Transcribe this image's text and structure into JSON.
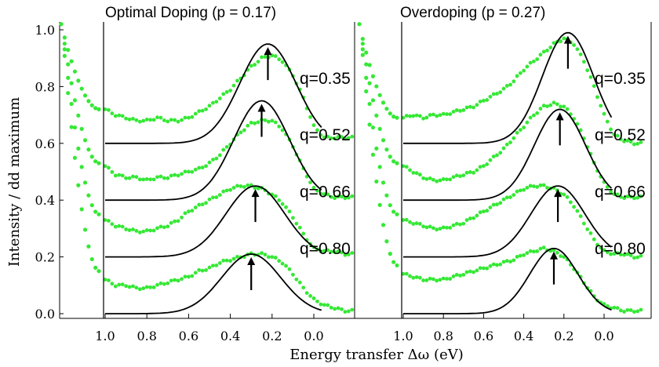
{
  "chart_data": {
    "type": "line",
    "xlabel": "Energy transfer Δω (eV)",
    "ylabel": "Intensity / dd maximum",
    "ylim": [
      0.0,
      1.0
    ],
    "y_ticks": [
      "0.0",
      "0.2",
      "0.4",
      "0.6",
      "0.8",
      "1.0"
    ],
    "x_ticks": [
      "1.0",
      "0.8",
      "0.6",
      "0.4",
      "0.2",
      "0.0"
    ],
    "xlim": [
      1.0,
      -0.2
    ],
    "series_style": {
      "measured_color": "#35e835",
      "fit_color": "#000000",
      "arrow_color": "#000000"
    },
    "panels": [
      {
        "title": "Optimal Doping (p = 0.17)",
        "curves": [
          {
            "q_label": "q=0.35",
            "baseline": 0.6,
            "fit_peak_x": 0.22,
            "fit_peak_y": 0.95,
            "fit_width": 0.19,
            "data_points": [
              [
                1.0,
                0.72
              ],
              [
                0.95,
                0.7
              ],
              [
                0.9,
                0.69
              ],
              [
                0.85,
                0.68
              ],
              [
                0.8,
                0.68
              ],
              [
                0.75,
                0.69
              ],
              [
                0.7,
                0.68
              ],
              [
                0.65,
                0.68
              ],
              [
                0.6,
                0.69
              ],
              [
                0.55,
                0.71
              ],
              [
                0.5,
                0.73
              ],
              [
                0.45,
                0.76
              ],
              [
                0.4,
                0.79
              ],
              [
                0.35,
                0.83
              ],
              [
                0.3,
                0.87
              ],
              [
                0.25,
                0.9
              ],
              [
                0.2,
                0.91
              ],
              [
                0.15,
                0.89
              ],
              [
                0.1,
                0.84
              ],
              [
                0.05,
                0.76
              ],
              [
                0.0,
                0.66
              ],
              [
                -0.05,
                0.62
              ],
              [
                -0.1,
                0.62
              ],
              [
                -0.15,
                0.62
              ],
              [
                -0.2,
                0.62
              ]
            ]
          },
          {
            "q_label": "q=0.52",
            "baseline": 0.4,
            "fit_peak_x": 0.25,
            "fit_peak_y": 0.75,
            "fit_width": 0.19,
            "data_points": [
              [
                1.0,
                0.52
              ],
              [
                0.95,
                0.49
              ],
              [
                0.9,
                0.48
              ],
              [
                0.85,
                0.48
              ],
              [
                0.8,
                0.47
              ],
              [
                0.75,
                0.48
              ],
              [
                0.7,
                0.48
              ],
              [
                0.65,
                0.49
              ],
              [
                0.6,
                0.5
              ],
              [
                0.55,
                0.51
              ],
              [
                0.5,
                0.53
              ],
              [
                0.45,
                0.56
              ],
              [
                0.4,
                0.6
              ],
              [
                0.35,
                0.64
              ],
              [
                0.3,
                0.67
              ],
              [
                0.25,
                0.68
              ],
              [
                0.2,
                0.68
              ],
              [
                0.15,
                0.65
              ],
              [
                0.1,
                0.59
              ],
              [
                0.05,
                0.51
              ],
              [
                0.0,
                0.44
              ],
              [
                -0.05,
                0.42
              ],
              [
                -0.1,
                0.41
              ],
              [
                -0.15,
                0.41
              ],
              [
                -0.2,
                0.41
              ]
            ]
          },
          {
            "q_label": "q=0.66",
            "baseline": 0.2,
            "fit_peak_x": 0.28,
            "fit_peak_y": 0.45,
            "fit_width": 0.2,
            "data_points": [
              [
                1.0,
                0.33
              ],
              [
                0.95,
                0.31
              ],
              [
                0.9,
                0.3
              ],
              [
                0.85,
                0.29
              ],
              [
                0.8,
                0.29
              ],
              [
                0.75,
                0.3
              ],
              [
                0.7,
                0.31
              ],
              [
                0.65,
                0.33
              ],
              [
                0.6,
                0.36
              ],
              [
                0.55,
                0.38
              ],
              [
                0.5,
                0.4
              ],
              [
                0.45,
                0.42
              ],
              [
                0.4,
                0.44
              ],
              [
                0.35,
                0.45
              ],
              [
                0.3,
                0.45
              ],
              [
                0.25,
                0.44
              ],
              [
                0.2,
                0.42
              ],
              [
                0.15,
                0.39
              ],
              [
                0.1,
                0.34
              ],
              [
                0.05,
                0.28
              ],
              [
                0.0,
                0.23
              ],
              [
                -0.05,
                0.22
              ],
              [
                -0.1,
                0.22
              ],
              [
                -0.15,
                0.21
              ],
              [
                -0.2,
                0.21
              ]
            ]
          },
          {
            "q_label": "q=0.80",
            "baseline": 0.0,
            "fit_peak_x": 0.3,
            "fit_peak_y": 0.21,
            "fit_width": 0.2,
            "data_points": [
              [
                1.0,
                0.12
              ],
              [
                0.95,
                0.1
              ],
              [
                0.9,
                0.1
              ],
              [
                0.85,
                0.09
              ],
              [
                0.8,
                0.09
              ],
              [
                0.75,
                0.1
              ],
              [
                0.7,
                0.11
              ],
              [
                0.65,
                0.12
              ],
              [
                0.6,
                0.13
              ],
              [
                0.55,
                0.15
              ],
              [
                0.5,
                0.16
              ],
              [
                0.45,
                0.18
              ],
              [
                0.4,
                0.19
              ],
              [
                0.35,
                0.2
              ],
              [
                0.3,
                0.21
              ],
              [
                0.25,
                0.21
              ],
              [
                0.2,
                0.2
              ],
              [
                0.15,
                0.18
              ],
              [
                0.1,
                0.14
              ],
              [
                0.05,
                0.09
              ],
              [
                0.0,
                0.05
              ],
              [
                -0.05,
                0.03
              ],
              [
                -0.1,
                0.02
              ],
              [
                -0.15,
                0.01
              ],
              [
                -0.2,
                0.01
              ]
            ]
          }
        ]
      },
      {
        "title": "Overdoping (p = 0.27)",
        "curves": [
          {
            "q_label": "q=0.35",
            "baseline": 0.6,
            "fit_peak_x": 0.18,
            "fit_peak_y": 0.99,
            "fit_width": 0.18,
            "data_points": [
              [
                1.0,
                0.69
              ],
              [
                0.95,
                0.7
              ],
              [
                0.9,
                0.69
              ],
              [
                0.85,
                0.7
              ],
              [
                0.8,
                0.7
              ],
              [
                0.75,
                0.71
              ],
              [
                0.7,
                0.72
              ],
              [
                0.65,
                0.73
              ],
              [
                0.6,
                0.75
              ],
              [
                0.55,
                0.77
              ],
              [
                0.5,
                0.79
              ],
              [
                0.45,
                0.82
              ],
              [
                0.4,
                0.86
              ],
              [
                0.35,
                0.89
              ],
              [
                0.3,
                0.92
              ],
              [
                0.25,
                0.95
              ],
              [
                0.2,
                0.97
              ],
              [
                0.15,
                0.95
              ],
              [
                0.1,
                0.89
              ],
              [
                0.05,
                0.8
              ],
              [
                0.0,
                0.7
              ],
              [
                -0.05,
                0.63
              ],
              [
                -0.1,
                0.61
              ],
              [
                -0.15,
                0.6
              ],
              [
                -0.2,
                0.6
              ]
            ]
          },
          {
            "q_label": "q=0.52",
            "baseline": 0.4,
            "fit_peak_x": 0.22,
            "fit_peak_y": 0.72,
            "fit_width": 0.18,
            "data_points": [
              [
                1.0,
                0.52
              ],
              [
                0.95,
                0.5
              ],
              [
                0.9,
                0.48
              ],
              [
                0.85,
                0.47
              ],
              [
                0.8,
                0.47
              ],
              [
                0.75,
                0.48
              ],
              [
                0.7,
                0.49
              ],
              [
                0.65,
                0.5
              ],
              [
                0.6,
                0.52
              ],
              [
                0.55,
                0.55
              ],
              [
                0.5,
                0.58
              ],
              [
                0.45,
                0.62
              ],
              [
                0.4,
                0.66
              ],
              [
                0.35,
                0.7
              ],
              [
                0.3,
                0.73
              ],
              [
                0.25,
                0.74
              ],
              [
                0.2,
                0.73
              ],
              [
                0.15,
                0.69
              ],
              [
                0.1,
                0.62
              ],
              [
                0.05,
                0.53
              ],
              [
                0.0,
                0.46
              ],
              [
                -0.05,
                0.42
              ],
              [
                -0.1,
                0.41
              ],
              [
                -0.15,
                0.41
              ],
              [
                -0.2,
                0.41
              ]
            ]
          },
          {
            "q_label": "q=0.66",
            "baseline": 0.2,
            "fit_peak_x": 0.23,
            "fit_peak_y": 0.45,
            "fit_width": 0.19,
            "data_points": [
              [
                1.0,
                0.33
              ],
              [
                0.95,
                0.32
              ],
              [
                0.9,
                0.31
              ],
              [
                0.85,
                0.3
              ],
              [
                0.8,
                0.3
              ],
              [
                0.75,
                0.31
              ],
              [
                0.7,
                0.32
              ],
              [
                0.65,
                0.34
              ],
              [
                0.6,
                0.36
              ],
              [
                0.55,
                0.38
              ],
              [
                0.5,
                0.4
              ],
              [
                0.45,
                0.42
              ],
              [
                0.4,
                0.44
              ],
              [
                0.35,
                0.45
              ],
              [
                0.3,
                0.45
              ],
              [
                0.25,
                0.44
              ],
              [
                0.2,
                0.42
              ],
              [
                0.15,
                0.38
              ],
              [
                0.1,
                0.32
              ],
              [
                0.05,
                0.26
              ],
              [
                0.0,
                0.22
              ],
              [
                -0.05,
                0.21
              ],
              [
                -0.1,
                0.21
              ],
              [
                -0.15,
                0.2
              ],
              [
                -0.2,
                0.2
              ]
            ]
          },
          {
            "q_label": "q=0.80",
            "baseline": 0.0,
            "fit_peak_x": 0.25,
            "fit_peak_y": 0.23,
            "fit_width": 0.17,
            "data_points": [
              [
                1.0,
                0.14
              ],
              [
                0.95,
                0.13
              ],
              [
                0.9,
                0.12
              ],
              [
                0.85,
                0.12
              ],
              [
                0.8,
                0.12
              ],
              [
                0.75,
                0.13
              ],
              [
                0.7,
                0.14
              ],
              [
                0.65,
                0.15
              ],
              [
                0.6,
                0.16
              ],
              [
                0.55,
                0.17
              ],
              [
                0.5,
                0.18
              ],
              [
                0.45,
                0.19
              ],
              [
                0.4,
                0.21
              ],
              [
                0.35,
                0.22
              ],
              [
                0.3,
                0.23
              ],
              [
                0.25,
                0.22
              ],
              [
                0.2,
                0.2
              ],
              [
                0.15,
                0.16
              ],
              [
                0.1,
                0.11
              ],
              [
                0.05,
                0.06
              ],
              [
                0.0,
                0.03
              ],
              [
                -0.05,
                0.02
              ],
              [
                -0.1,
                0.01
              ],
              [
                -0.15,
                0.01
              ],
              [
                -0.2,
                0.01
              ]
            ]
          }
        ]
      }
    ]
  }
}
